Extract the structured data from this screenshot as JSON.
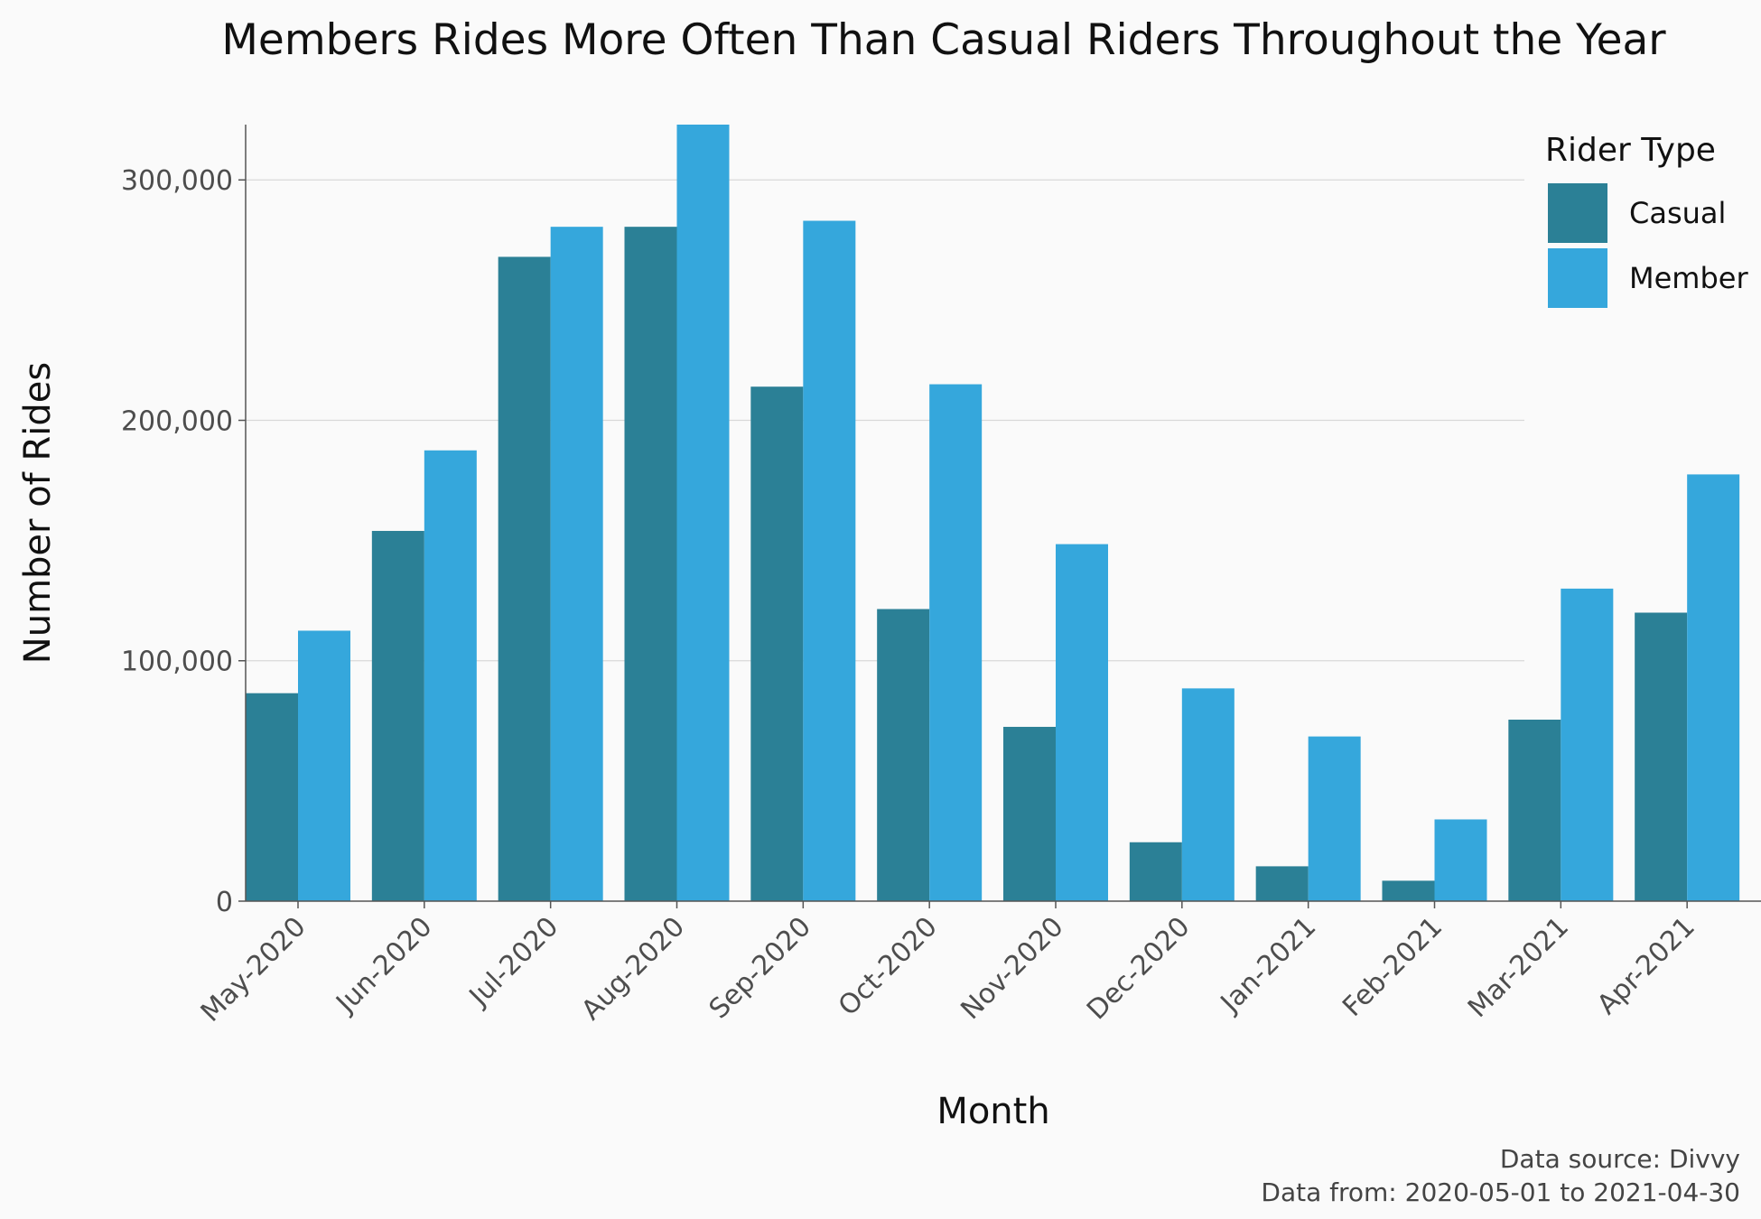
{
  "chart_data": {
    "type": "bar",
    "title": "Members Rides More Often Than Casual Riders Throughout the Year",
    "xlabel": "Month",
    "ylabel": "Number of Rides",
    "categories": [
      "May-2020",
      "Jun-2020",
      "Jul-2020",
      "Aug-2020",
      "Sep-2020",
      "Oct-2020",
      "Nov-2020",
      "Dec-2020",
      "Jan-2021",
      "Feb-2021",
      "Mar-2021",
      "Apr-2021"
    ],
    "series": [
      {
        "name": "Casual",
        "color": "#2b8096",
        "values": [
          86500,
          154000,
          268000,
          280500,
          214000,
          121500,
          72500,
          24500,
          14500,
          8500,
          75500,
          120000
        ]
      },
      {
        "name": "Member",
        "color": "#35a7dc",
        "values": [
          112500,
          187500,
          280500,
          323000,
          283000,
          215000,
          148500,
          88500,
          68500,
          34000,
          130000,
          177500
        ]
      }
    ],
    "ylim": [
      0,
      323000
    ],
    "yticks": [
      0,
      100000,
      200000,
      300000
    ],
    "ytick_labels": [
      "0",
      "100,000",
      "200,000",
      "300,000"
    ],
    "grid": "horizontal",
    "legend": {
      "title": "Rider Type",
      "position": "top-right"
    }
  },
  "caption": {
    "line1": "Data source: Divvy",
    "line2": "Data from: 2020-05-01 to 2021-04-30"
  }
}
